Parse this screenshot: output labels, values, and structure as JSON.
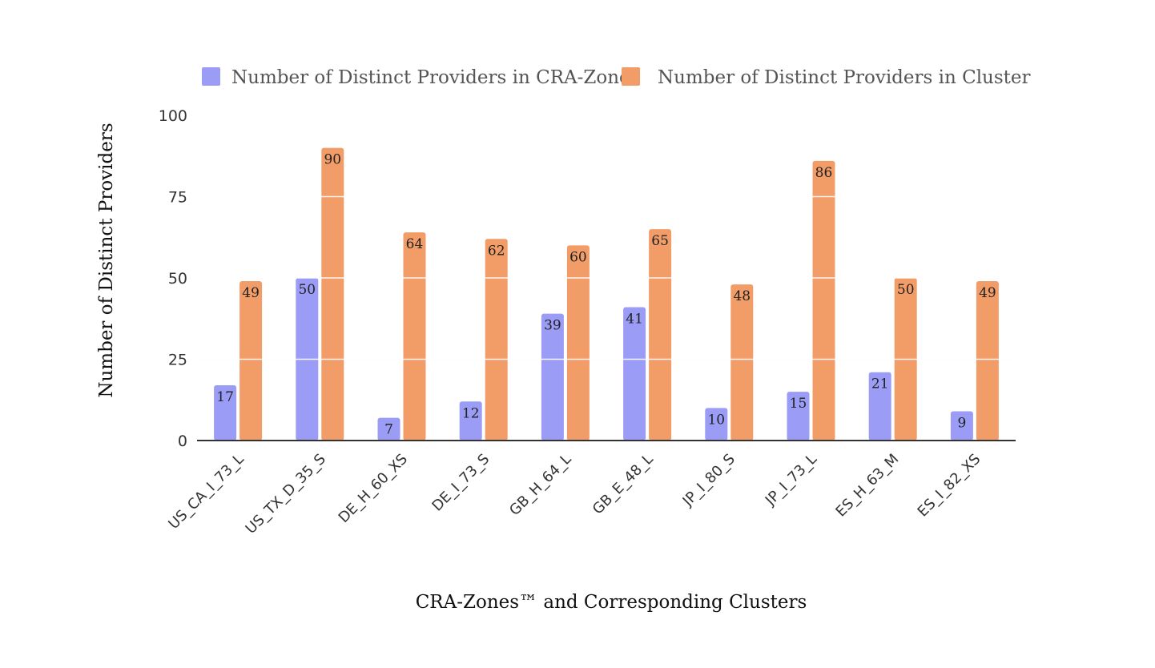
{
  "chart_data": {
    "type": "bar",
    "xlabel": "CRA-Zones™ and Corresponding Clusters",
    "ylabel": "Number of Distinct Providers",
    "ylim": [
      0,
      100
    ],
    "yticks": [
      "0",
      "25",
      "50",
      "75",
      "100"
    ],
    "grid": true,
    "legend_position": "top",
    "categories": [
      "US_CA_I_73_L",
      "US_TX_D_35_S",
      "DE_H_60_XS",
      "DE_I_73_S",
      "GB_H_64_L",
      "GB_E_48_L",
      "JP_I_80_S",
      "JP_I_73_L",
      "ES_H_63_M",
      "ES_I_82_XS"
    ],
    "series": [
      {
        "name": "Number of Distinct Providers in CRA-Zone",
        "color": "#9b9cf5",
        "values": [
          17,
          50,
          7,
          12,
          39,
          41,
          10,
          15,
          21,
          9
        ]
      },
      {
        "name": "Number of Distinct Providers in Cluster",
        "color": "#f29c68",
        "values": [
          49,
          90,
          64,
          62,
          60,
          65,
          48,
          86,
          50,
          49
        ]
      }
    ]
  }
}
